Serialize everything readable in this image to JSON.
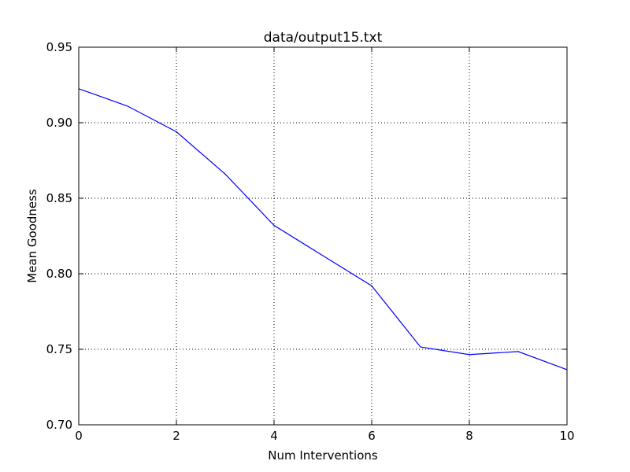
{
  "chart_data": {
    "type": "line",
    "title": "data/output15.txt",
    "xlabel": "Num Interventions",
    "ylabel": "Mean Goodness",
    "xlim": [
      0,
      10
    ],
    "ylim": [
      0.7,
      0.95
    ],
    "x_ticks": [
      0,
      2,
      4,
      6,
      8,
      10
    ],
    "x_tick_labels": [
      "0",
      "2",
      "4",
      "6",
      "8",
      "10"
    ],
    "y_ticks": [
      0.7,
      0.75,
      0.8,
      0.85,
      0.9,
      0.95
    ],
    "y_tick_labels": [
      "0.70",
      "0.75",
      "0.80",
      "0.85",
      "0.90",
      "0.95"
    ],
    "grid": true,
    "series": [
      {
        "color": "#0000ff",
        "x": [
          0,
          1,
          2,
          3,
          4,
          5,
          6,
          7,
          8,
          9,
          10
        ],
        "values": [
          0.9225,
          0.911,
          0.894,
          0.866,
          0.832,
          0.812,
          0.792,
          0.7515,
          0.7465,
          0.7485,
          0.7365
        ]
      }
    ]
  }
}
